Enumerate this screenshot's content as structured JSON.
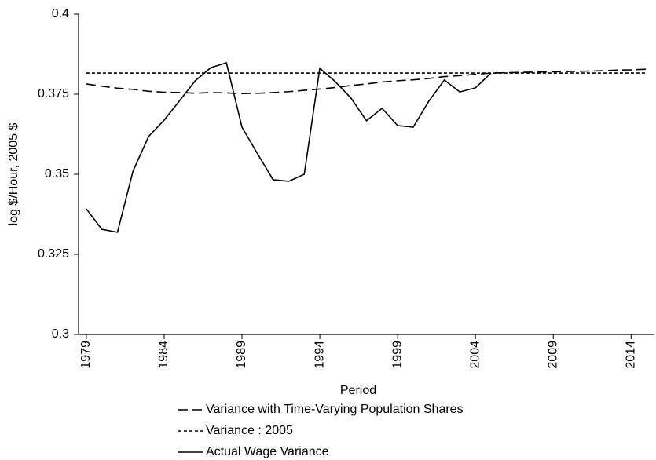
{
  "chart_data": {
    "type": "line",
    "x_label": "Period",
    "y_label": "log $/Hour, 2005 $",
    "x": [
      1979,
      1980,
      1981,
      1982,
      1983,
      1984,
      1985,
      1986,
      1987,
      1988,
      1989,
      1990,
      1991,
      1992,
      1993,
      1994,
      1995,
      1996,
      1997,
      1998,
      1999,
      2000,
      2001,
      2002,
      2003,
      2004,
      2005,
      2006,
      2007,
      2008,
      2009,
      2010,
      2011,
      2012,
      2013,
      2014,
      2015
    ],
    "xlim": [
      1978.5,
      2015.5
    ],
    "xticks": [
      1979,
      1984,
      1989,
      1994,
      1999,
      2004,
      2009,
      2014
    ],
    "ylim": [
      0.3,
      0.4
    ],
    "yticks": [
      0.3,
      0.325,
      0.35,
      0.375,
      0.4
    ],
    "series": [
      {
        "name": "Variance with Time-Varying Population Shares",
        "color": "#000000",
        "dash": "long",
        "values": [
          0.3782,
          0.3775,
          0.3769,
          0.3765,
          0.3759,
          0.3756,
          0.3755,
          0.3753,
          0.3755,
          0.3754,
          0.3752,
          0.3753,
          0.3755,
          0.3758,
          0.3762,
          0.3766,
          0.3771,
          0.3777,
          0.3782,
          0.3788,
          0.3792,
          0.3795,
          0.3799,
          0.3805,
          0.3808,
          0.3812,
          0.3816,
          0.3817,
          0.3818,
          0.3819,
          0.382,
          0.3821,
          0.3822,
          0.3823,
          0.3825,
          0.3826,
          0.3828
        ]
      },
      {
        "name": "Variance : 2005",
        "color": "#000000",
        "dash": "short",
        "values": [
          0.3816,
          0.3816,
          0.3816,
          0.3816,
          0.3816,
          0.3816,
          0.3816,
          0.3816,
          0.3816,
          0.3816,
          0.3816,
          0.3816,
          0.3816,
          0.3816,
          0.3816,
          0.3816,
          0.3816,
          0.3816,
          0.3816,
          0.3816,
          0.3816,
          0.3816,
          0.3816,
          0.3816,
          0.3816,
          0.3816,
          0.3816,
          0.3816,
          0.3816,
          0.3816,
          0.3816,
          0.3816,
          0.3816,
          0.3816,
          0.3816,
          0.3816,
          0.3816
        ]
      },
      {
        "name": "Actual Wage Variance",
        "color": "#000000",
        "dash": "solid",
        "values": [
          0.3392,
          0.3328,
          0.3319,
          0.351,
          0.3618,
          0.3669,
          0.373,
          0.3792,
          0.3833,
          0.3848,
          0.3647,
          0.3564,
          0.3483,
          0.3478,
          0.35,
          0.3831,
          0.3789,
          0.3738,
          0.3667,
          0.3706,
          0.3652,
          0.3647,
          0.3728,
          0.3794,
          0.3757,
          0.377,
          0.3816,
          null,
          null,
          null,
          null,
          null,
          null,
          null,
          null,
          null,
          null
        ]
      }
    ]
  }
}
